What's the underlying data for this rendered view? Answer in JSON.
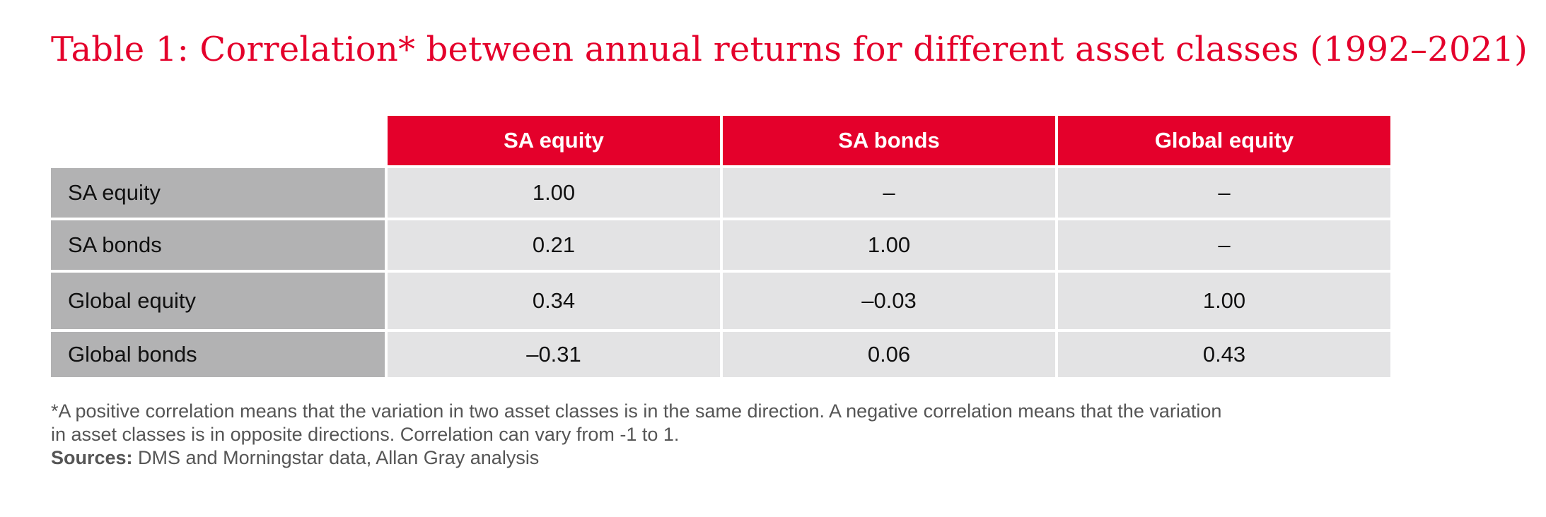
{
  "title": "Table 1: Correlation* between annual returns for different asset classes (1992–2021)",
  "chart_data": {
    "type": "table",
    "columns": [
      "SA equity",
      "SA bonds",
      "Global equity"
    ],
    "rows": [
      {
        "label": "SA equity",
        "values": [
          "1.00",
          "–",
          "–"
        ]
      },
      {
        "label": "SA bonds",
        "values": [
          "0.21",
          "1.00",
          "–"
        ]
      },
      {
        "label": "Global equity",
        "values": [
          "0.34",
          "–0.03",
          "1.00"
        ]
      },
      {
        "label": "Global bonds",
        "values": [
          "–0.31",
          "0.06",
          "0.43"
        ]
      }
    ]
  },
  "footnote": {
    "line1": "*A positive correlation means that the variation in two asset classes is in the same direction. A negative correlation means that the variation",
    "line2": "in asset classes is in opposite directions. Correlation can vary from -1 to 1.",
    "sources_label": "Sources:",
    "sources_text": " DMS and Morningstar data, Allan Gray analysis"
  },
  "colors": {
    "accent": "#e4002b",
    "header_row_bg": "#e4002b",
    "row_label_bg": "#b2b2b3",
    "cell_bg": "#e3e3e4"
  }
}
